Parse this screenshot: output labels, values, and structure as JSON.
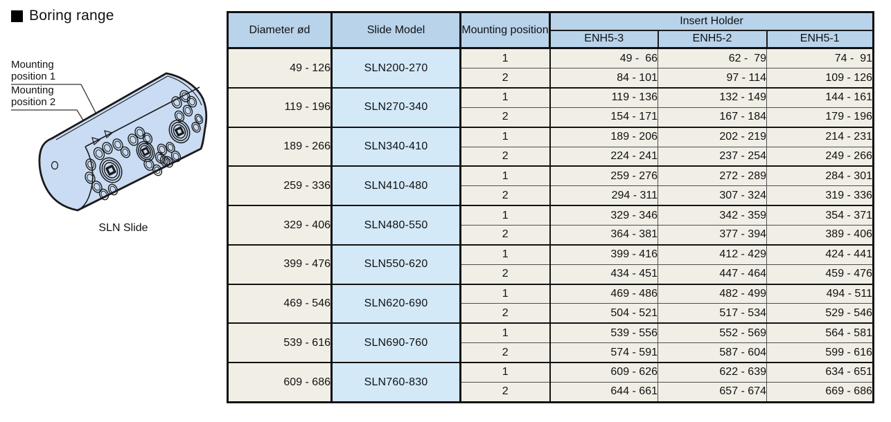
{
  "section": {
    "title": "Boring range"
  },
  "illustration": {
    "caption": "SLN Slide",
    "labels": {
      "position1": "Mounting position 1",
      "position2": "Mounting position 2"
    }
  },
  "table": {
    "header": {
      "diameter": "Diameter ød",
      "slide_model": "Slide Model",
      "mounting_position": "Mounting position",
      "insert_holder": "Insert Holder",
      "holder_models": [
        "ENH5-3",
        "ENH5-2",
        "ENH5-1"
      ]
    },
    "rows": [
      {
        "diameter": "49 - 126",
        "model": "SLN200-270",
        "positions": [
          {
            "pos": "1",
            "values": [
              "49 -  66",
              "62 -  79",
              "74 -  91"
            ]
          },
          {
            "pos": "2",
            "values": [
              "84 - 101",
              "97 - 114",
              "109 - 126"
            ]
          }
        ]
      },
      {
        "diameter": "119 - 196",
        "model": "SLN270-340",
        "positions": [
          {
            "pos": "1",
            "values": [
              "119 - 136",
              "132 - 149",
              "144 - 161"
            ]
          },
          {
            "pos": "2",
            "values": [
              "154 - 171",
              "167 - 184",
              "179 - 196"
            ]
          }
        ]
      },
      {
        "diameter": "189 - 266",
        "model": "SLN340-410",
        "positions": [
          {
            "pos": "1",
            "values": [
              "189 - 206",
              "202 - 219",
              "214 - 231"
            ]
          },
          {
            "pos": "2",
            "values": [
              "224 - 241",
              "237 - 254",
              "249 - 266"
            ]
          }
        ]
      },
      {
        "diameter": "259 - 336",
        "model": "SLN410-480",
        "positions": [
          {
            "pos": "1",
            "values": [
              "259 - 276",
              "272 - 289",
              "284 - 301"
            ]
          },
          {
            "pos": "2",
            "values": [
              "294 - 311",
              "307 - 324",
              "319 - 336"
            ]
          }
        ]
      },
      {
        "diameter": "329 - 406",
        "model": "SLN480-550",
        "positions": [
          {
            "pos": "1",
            "values": [
              "329 - 346",
              "342 - 359",
              "354 - 371"
            ]
          },
          {
            "pos": "2",
            "values": [
              "364 - 381",
              "377 - 394",
              "389 - 406"
            ]
          }
        ]
      },
      {
        "diameter": "399 - 476",
        "model": "SLN550-620",
        "positions": [
          {
            "pos": "1",
            "values": [
              "399 - 416",
              "412 - 429",
              "424 - 441"
            ]
          },
          {
            "pos": "2",
            "values": [
              "434 - 451",
              "447 - 464",
              "459 - 476"
            ]
          }
        ]
      },
      {
        "diameter": "469 - 546",
        "model": "SLN620-690",
        "positions": [
          {
            "pos": "1",
            "values": [
              "469 - 486",
              "482 - 499",
              "494 - 511"
            ]
          },
          {
            "pos": "2",
            "values": [
              "504 - 521",
              "517 - 534",
              "529 - 546"
            ]
          }
        ]
      },
      {
        "diameter": "539 - 616",
        "model": "SLN690-760",
        "positions": [
          {
            "pos": "1",
            "values": [
              "539 - 556",
              "552 - 569",
              "564 - 581"
            ]
          },
          {
            "pos": "2",
            "values": [
              "574 - 591",
              "587 - 604",
              "599 - 616"
            ]
          }
        ]
      },
      {
        "diameter": "609 - 686",
        "model": "SLN760-830",
        "positions": [
          {
            "pos": "1",
            "values": [
              "609 - 626",
              "622 - 639",
              "634 - 651"
            ]
          },
          {
            "pos": "2",
            "values": [
              "644 - 661",
              "657 - 674",
              "669 - 686"
            ]
          }
        ]
      }
    ]
  },
  "colors": {
    "header_blue": "#b8d3ea",
    "model_cell_blue": "#d3e9f8",
    "cell_cream": "#f1eee6",
    "illustration_blue": "#c9dcf3",
    "border_black": "#111111"
  }
}
